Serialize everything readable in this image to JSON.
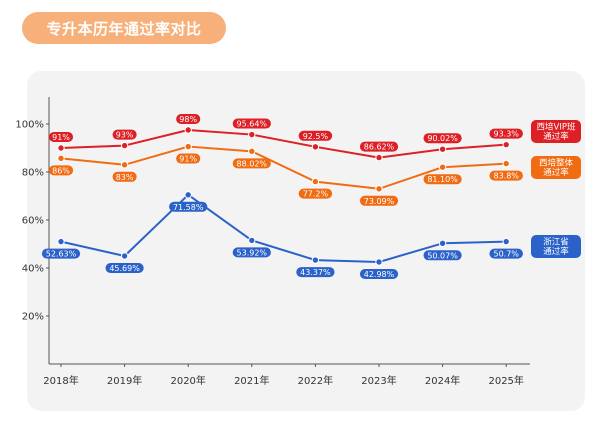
{
  "header": {
    "title": "专升本历年通过率对比"
  },
  "colors": {
    "accent": "#f7b07a",
    "card_bg": "#f3f3f3"
  },
  "chart_data": {
    "type": "line",
    "title": "",
    "x": [
      "2018年",
      "2019年",
      "2020年",
      "2021年",
      "2022年",
      "2023年",
      "2024年",
      "2025年"
    ],
    "yticks": [
      "20%",
      "40%",
      "60%",
      "80%",
      "100%"
    ],
    "ylim": [
      0,
      100
    ],
    "grid": false,
    "legend": "right",
    "series": [
      {
        "key": "vip",
        "legend_lines": [
          "西培VIP班",
          "通过率"
        ],
        "color": "#dd1f26",
        "values": [
          91,
          93,
          98,
          95.64,
          92.5,
          86.62,
          90.02,
          93.3
        ],
        "plot": [
          90,
          91,
          97.5,
          95.6,
          90.5,
          86,
          89.5,
          91.4
        ],
        "labels": [
          "91%",
          "93%",
          "98%",
          "95.64%",
          "92.5%",
          "86.62%",
          "90.02%",
          "93.3%"
        ],
        "label_pos": "above"
      },
      {
        "key": "overall",
        "legend_lines": [
          "西培整体",
          "通过率"
        ],
        "color": "#f06b12",
        "values": [
          86,
          83,
          91,
          88.02,
          77.2,
          73.09,
          81.1,
          83.8
        ],
        "plot": [
          85.7,
          83,
          90.6,
          88.6,
          76,
          73,
          82,
          83.5
        ],
        "labels": [
          "86%",
          "83%",
          "91%",
          "88.02%",
          "77.2%",
          "73.09%",
          "81.10%",
          "83.8%"
        ],
        "label_pos": "below"
      },
      {
        "key": "zhejiang",
        "legend_lines": [
          "浙江省",
          "通过率"
        ],
        "color": "#2b62c9",
        "values": [
          52.63,
          45.69,
          71.58,
          53.92,
          43.37,
          42.98,
          50.07,
          50.7
        ],
        "plot": [
          51,
          45,
          70.5,
          51.5,
          43.3,
          42.5,
          50.3,
          51
        ],
        "labels": [
          "52.63%",
          "45.69%",
          "71.58%",
          "53.92%",
          "43.37%",
          "42.98%",
          "50.07%",
          "50.7%"
        ],
        "label_pos": "below"
      }
    ]
  }
}
